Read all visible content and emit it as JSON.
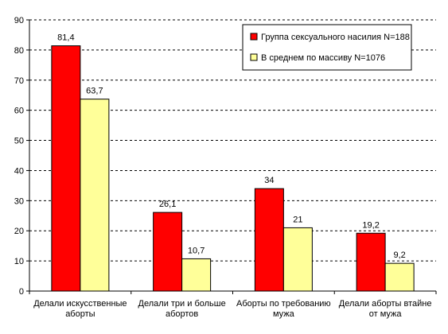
{
  "chart_data": {
    "type": "bar",
    "categories": [
      [
        "Делали искусственные",
        "аборты"
      ],
      [
        "Делали три и больше",
        "абортов"
      ],
      [
        "Аборты по требованию",
        "мужа"
      ],
      [
        "Делали аборты втайне",
        "от мужа"
      ]
    ],
    "series": [
      {
        "name": "Группа сексуального насилия N=188",
        "values": [
          81.4,
          26.1,
          34,
          19.2
        ],
        "labels": [
          "81,4",
          "26,1",
          "34",
          "19,2"
        ],
        "color": "#ff0000"
      },
      {
        "name": "В среднем по массиву N=1076",
        "values": [
          63.7,
          10.7,
          21,
          9.2
        ],
        "labels": [
          "63,7",
          "10,7",
          "21",
          "9,2"
        ],
        "color": "#ffff99"
      }
    ],
    "ylim": [
      0,
      90
    ],
    "yticks": [
      0,
      10,
      20,
      30,
      40,
      50,
      60,
      70,
      80,
      90
    ],
    "grid": true,
    "legend": "top-right"
  }
}
